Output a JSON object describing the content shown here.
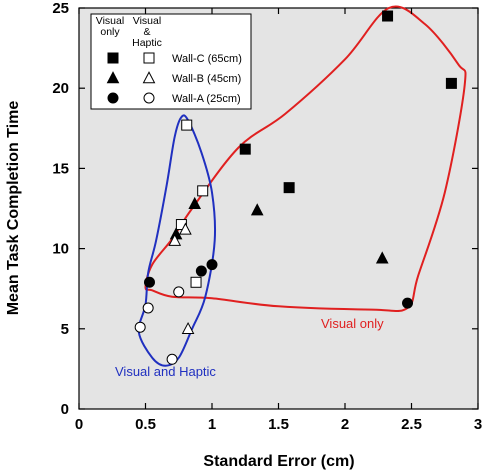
{
  "chart_data": {
    "type": "scatter",
    "xlabel": "Standard Error (cm)",
    "ylabel": "Mean Task Completion Time",
    "xlim": [
      0,
      3
    ],
    "ylim": [
      0,
      25
    ],
    "x_ticks": [
      "0",
      "0.5",
      "1",
      "1.5",
      "2",
      "2.5",
      "3"
    ],
    "y_ticks": [
      "0",
      "5",
      "10",
      "15",
      "20",
      "25"
    ],
    "legend": {
      "placement": "top-left",
      "header_visual_only": "Visual only",
      "header_visual_haptic": "Visual & Haptic",
      "entries": [
        {
          "label": "Wall-C (65cm)",
          "marker": "square"
        },
        {
          "label": "Wall-B (45cm)",
          "marker": "triangle"
        },
        {
          "label": "Wall-A (25cm)",
          "marker": "circle"
        }
      ]
    },
    "series": [
      {
        "condition": "Visual only",
        "wall": "Wall-C (65cm)",
        "marker": "square",
        "filled": true,
        "points": [
          [
            2.32,
            24.5
          ],
          [
            2.8,
            20.3
          ],
          [
            1.25,
            16.2
          ],
          [
            1.58,
            13.8
          ]
        ]
      },
      {
        "condition": "Visual & Haptic",
        "wall": "Wall-C (65cm)",
        "marker": "square",
        "filled": false,
        "points": [
          [
            0.81,
            17.7
          ],
          [
            0.93,
            13.6
          ],
          [
            0.77,
            11.5
          ],
          [
            0.88,
            7.9
          ]
        ]
      },
      {
        "condition": "Visual only",
        "wall": "Wall-B (45cm)",
        "marker": "triangle",
        "filled": true,
        "points": [
          [
            0.87,
            12.8
          ],
          [
            1.34,
            12.4
          ],
          [
            0.73,
            10.9
          ],
          [
            2.28,
            9.4
          ]
        ]
      },
      {
        "condition": "Visual & Haptic",
        "wall": "Wall-B (45cm)",
        "marker": "triangle",
        "filled": false,
        "points": [
          [
            0.72,
            10.5
          ],
          [
            0.8,
            11.2
          ],
          [
            0.82,
            5.0
          ]
        ]
      },
      {
        "condition": "Visual only",
        "wall": "Wall-A (25cm)",
        "marker": "circle",
        "filled": true,
        "points": [
          [
            0.53,
            7.9
          ],
          [
            0.92,
            8.6
          ],
          [
            1.0,
            9.0
          ],
          [
            2.47,
            6.6
          ]
        ]
      },
      {
        "condition": "Visual & Haptic",
        "wall": "Wall-A (25cm)",
        "marker": "circle",
        "filled": false,
        "points": [
          [
            0.52,
            6.3
          ],
          [
            0.75,
            7.3
          ],
          [
            0.46,
            5.1
          ],
          [
            0.7,
            3.1
          ]
        ]
      }
    ],
    "annotations": [
      {
        "text": "Visual only",
        "color": "#e02020"
      },
      {
        "text": "Visual and Haptic",
        "color": "#2030c0"
      }
    ],
    "hulls": {
      "visual_only_color": "#e02020",
      "visual_haptic_color": "#2030c0",
      "visual_only": [
        [
          0.5,
          7.6
        ],
        [
          0.55,
          9.0
        ],
        [
          0.7,
          10.6
        ],
        [
          0.85,
          12.5
        ],
        [
          1.2,
          16.3
        ],
        [
          1.55,
          18.4
        ],
        [
          2.0,
          21.8
        ],
        [
          2.33,
          25.0
        ],
        [
          2.6,
          24.0
        ],
        [
          2.85,
          21.5
        ],
        [
          2.9,
          20.2
        ],
        [
          2.75,
          13.5
        ],
        [
          2.55,
          8.3
        ],
        [
          2.47,
          6.3
        ],
        [
          2.2,
          6.2
        ],
        [
          1.5,
          6.4
        ],
        [
          1.0,
          6.9
        ],
        [
          0.7,
          7.0
        ],
        [
          0.55,
          7.4
        ]
      ],
      "visual_haptic": [
        [
          0.77,
          18.2
        ],
        [
          0.82,
          18.0
        ],
        [
          0.92,
          16.0
        ],
        [
          1.0,
          13.5
        ],
        [
          1.02,
          10.5
        ],
        [
          0.95,
          7.0
        ],
        [
          0.85,
          5.0
        ],
        [
          0.75,
          3.2
        ],
        [
          0.65,
          2.7
        ],
        [
          0.55,
          3.2
        ],
        [
          0.45,
          4.8
        ],
        [
          0.5,
          6.5
        ],
        [
          0.52,
          8.5
        ],
        [
          0.58,
          10.5
        ],
        [
          0.66,
          14.0
        ],
        [
          0.72,
          17.0
        ]
      ]
    }
  }
}
